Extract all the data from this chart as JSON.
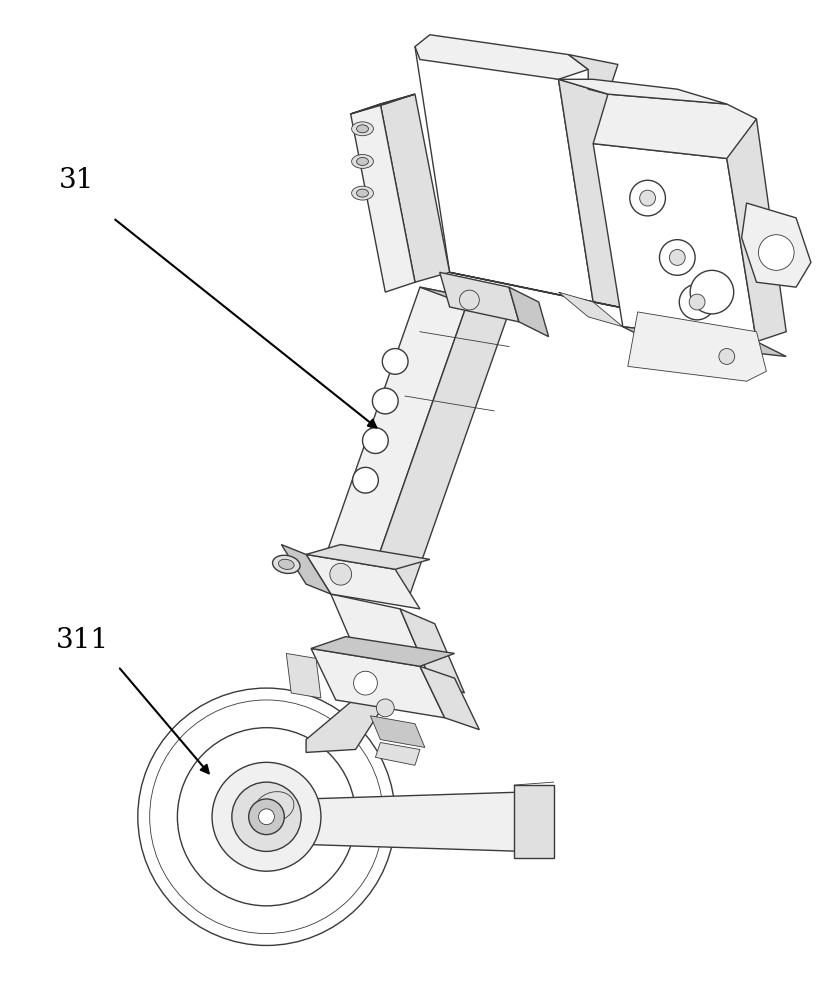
{
  "background_color": "#ffffff",
  "label_31": "31",
  "label_311": "311",
  "line_color": "#3a3a3a",
  "fill_white": "#ffffff",
  "fill_light": "#f0f0f0",
  "fill_mid": "#e0e0e0",
  "fill_dark": "#c8c8c8",
  "fill_darker": "#b0b0b0",
  "label_fontsize": 20,
  "figsize": [
    8.25,
    10.0
  ],
  "dpi": 100,
  "lw_main": 1.0,
  "lw_thin": 0.6,
  "lw_thick": 1.4
}
